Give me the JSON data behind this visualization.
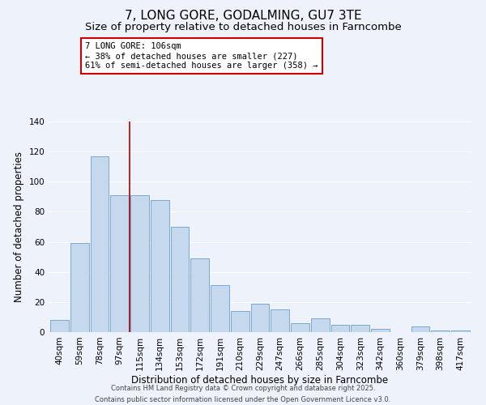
{
  "title": "7, LONG GORE, GODALMING, GU7 3TE",
  "subtitle": "Size of property relative to detached houses in Farncombe",
  "xlabel": "Distribution of detached houses by size in Farncombe",
  "ylabel": "Number of detached properties",
  "categories": [
    "40sqm",
    "59sqm",
    "78sqm",
    "97sqm",
    "115sqm",
    "134sqm",
    "153sqm",
    "172sqm",
    "191sqm",
    "210sqm",
    "229sqm",
    "247sqm",
    "266sqm",
    "285sqm",
    "304sqm",
    "323sqm",
    "342sqm",
    "360sqm",
    "379sqm",
    "398sqm",
    "417sqm"
  ],
  "values": [
    8,
    59,
    117,
    91,
    91,
    88,
    70,
    49,
    31,
    14,
    19,
    15,
    6,
    9,
    5,
    5,
    2,
    0,
    4,
    1,
    1
  ],
  "bar_color": "#c5d8ee",
  "bar_edge_color": "#6b9ec8",
  "vline_x_index": 3.5,
  "vline_color": "#aa0000",
  "annotation_title": "7 LONG GORE: 106sqm",
  "annotation_line1": "← 38% of detached houses are smaller (227)",
  "annotation_line2": "61% of semi-detached houses are larger (358) →",
  "annotation_box_color": "#ffffff",
  "annotation_box_edge": "#cc0000",
  "ylim": [
    0,
    140
  ],
  "yticks": [
    0,
    20,
    40,
    60,
    80,
    100,
    120,
    140
  ],
  "footer1": "Contains HM Land Registry data © Crown copyright and database right 2025.",
  "footer2": "Contains public sector information licensed under the Open Government Licence v3.0.",
  "bg_color": "#eef2fa",
  "grid_color": "#ffffff",
  "title_fontsize": 11,
  "subtitle_fontsize": 9.5,
  "tick_fontsize": 7.5,
  "ylabel_fontsize": 8.5,
  "xlabel_fontsize": 8.5,
  "footer_fontsize": 6
}
